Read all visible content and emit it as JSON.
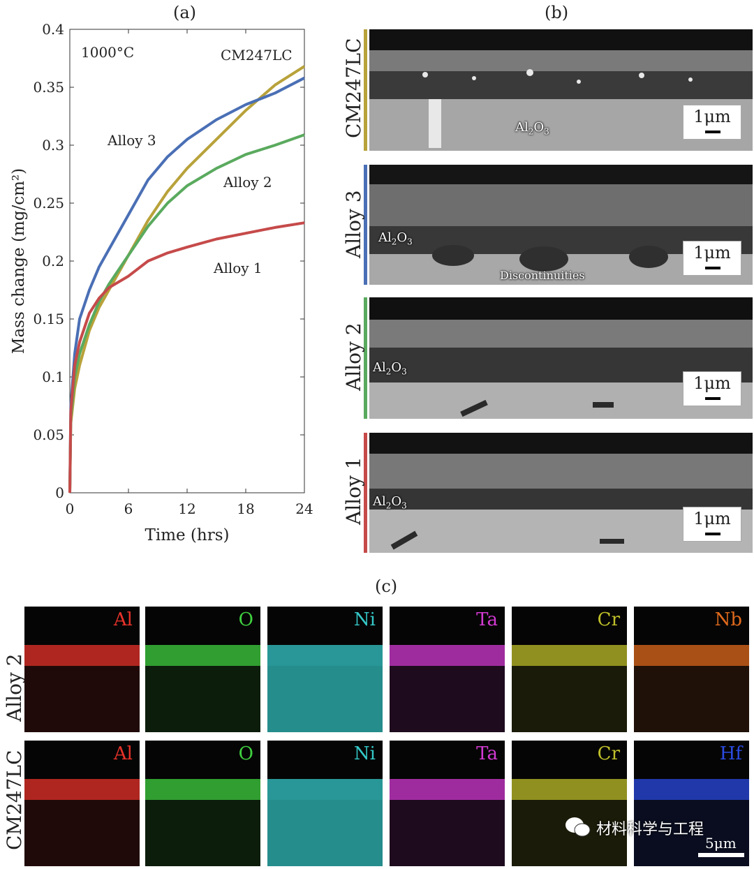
{
  "panel_labels": {
    "a": "(a)",
    "b": "(b)",
    "c": "(c)"
  },
  "chart_data": {
    "type": "line",
    "title": "",
    "xlabel": "Time (hrs)",
    "ylabel": "Mass change (mg/cm²)",
    "xlim": [
      0,
      24
    ],
    "ylim": [
      0,
      0.4
    ],
    "xticks": [
      0,
      6,
      12,
      18,
      24
    ],
    "yticks": [
      0,
      0.05,
      0.1,
      0.15,
      0.2,
      0.25,
      0.3,
      0.35,
      0.4
    ],
    "ytick_labels": [
      "0",
      "0.05",
      "0.1",
      "0.15",
      "0.2",
      "0.25",
      "0.3",
      "0.35",
      "0.4"
    ],
    "grid": false,
    "annotations": [
      "1000°C",
      "CM247LC",
      "Alloy 3",
      "Alloy 2",
      "Alloy 1"
    ],
    "series": [
      {
        "name": "CM247LC",
        "color": "#b8a23a",
        "x": [
          0,
          0.1,
          0.5,
          1,
          2,
          3,
          4,
          6,
          8,
          10,
          12,
          15,
          18,
          21,
          24
        ],
        "y": [
          0,
          0.06,
          0.09,
          0.11,
          0.14,
          0.16,
          0.175,
          0.205,
          0.235,
          0.26,
          0.28,
          0.305,
          0.33,
          0.352,
          0.368
        ]
      },
      {
        "name": "Alloy 3",
        "color": "#4a6fb5",
        "x": [
          0,
          0.1,
          0.5,
          1,
          2,
          3,
          4,
          6,
          8,
          10,
          12,
          15,
          18,
          21,
          24
        ],
        "y": [
          0,
          0.075,
          0.12,
          0.15,
          0.175,
          0.195,
          0.21,
          0.24,
          0.27,
          0.29,
          0.305,
          0.322,
          0.335,
          0.345,
          0.358
        ]
      },
      {
        "name": "Alloy 2",
        "color": "#5aaa5e",
        "x": [
          0,
          0.1,
          0.5,
          1,
          2,
          3,
          4,
          6,
          8,
          10,
          12,
          15,
          18,
          21,
          24
        ],
        "y": [
          0,
          0.065,
          0.1,
          0.12,
          0.145,
          0.165,
          0.18,
          0.205,
          0.23,
          0.25,
          0.265,
          0.28,
          0.292,
          0.3,
          0.309
        ]
      },
      {
        "name": "Alloy 1",
        "color": "#c64a4a",
        "x": [
          0,
          0.1,
          0.5,
          1,
          2,
          3,
          4,
          6,
          8,
          10,
          12,
          15,
          18,
          21,
          24
        ],
        "y": [
          0,
          0.07,
          0.11,
          0.13,
          0.155,
          0.168,
          0.177,
          0.187,
          0.2,
          0.207,
          0.212,
          0.219,
          0.224,
          0.229,
          0.233
        ]
      }
    ]
  },
  "sem_panels": [
    {
      "name": "CM247LC",
      "color": "#b8a23a",
      "scale": "1μm",
      "annotation": "Al2O3"
    },
    {
      "name": "Alloy 3",
      "color": "#4a6fb5",
      "scale": "1μm",
      "annotation": "Al2O3",
      "annotation2": "Discontinuities"
    },
    {
      "name": "Alloy 2",
      "color": "#5aaa5e",
      "scale": "1μm",
      "annotation": "Al2O3"
    },
    {
      "name": "Alloy 1",
      "color": "#c64a4a",
      "scale": "1μm",
      "annotation": "Al2O3"
    }
  ],
  "eds": {
    "rows": [
      "Alloy 2",
      "CM247LC"
    ],
    "row1_elements": [
      {
        "el": "Al",
        "color": "#e8322a"
      },
      {
        "el": "O",
        "color": "#3fd13f"
      },
      {
        "el": "Ni",
        "color": "#35c8c8"
      },
      {
        "el": "Ta",
        "color": "#d33ad3"
      },
      {
        "el": "Cr",
        "color": "#bfbf2a"
      },
      {
        "el": "Nb",
        "color": "#e06a1c"
      }
    ],
    "row2_elements": [
      {
        "el": "Al",
        "color": "#e8322a"
      },
      {
        "el": "O",
        "color": "#3fd13f"
      },
      {
        "el": "Ni",
        "color": "#35c8c8"
      },
      {
        "el": "Ta",
        "color": "#d33ad3"
      },
      {
        "el": "Cr",
        "color": "#bfbf2a"
      },
      {
        "el": "Hf",
        "color": "#2a4ae0"
      }
    ],
    "scale": "5μm"
  },
  "watermark": "材料科学与工程"
}
